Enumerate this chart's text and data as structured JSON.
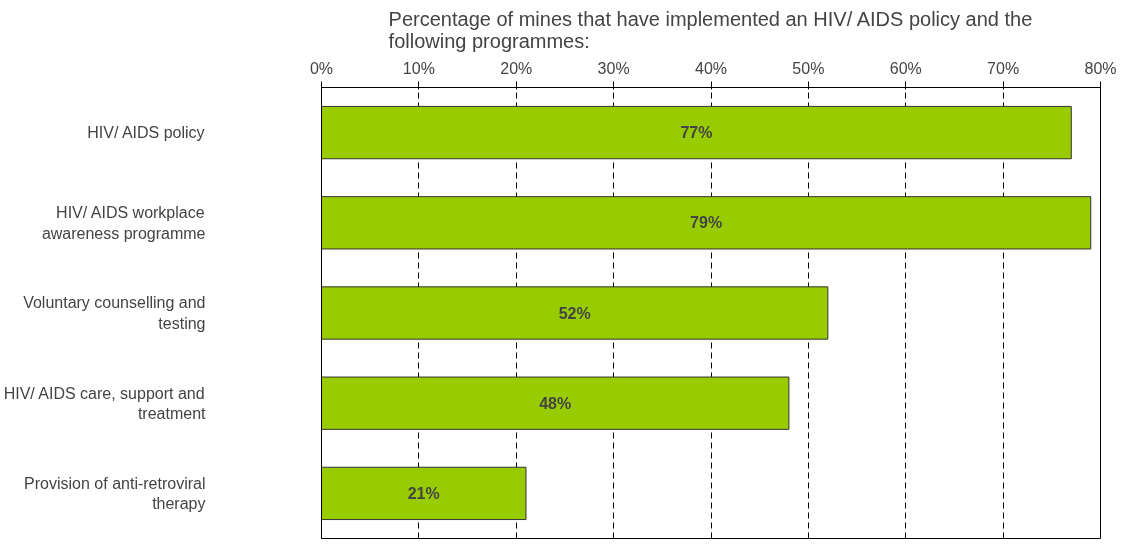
{
  "chart_data": {
    "type": "bar",
    "orientation": "horizontal",
    "title": "Percentage of mines that have implemented an HIV/ AIDS policy and the following programmes:",
    "categories": [
      "HIV/ AIDS policy",
      "HIV/ AIDS workplace awareness programme",
      "Voluntary counselling and testing",
      "HIV/ AIDS care, support and treatment",
      "Provision of anti-retroviral therapy"
    ],
    "values": [
      77,
      79,
      52,
      48,
      21
    ],
    "color": "#99cc00",
    "value_labels": [
      "77%",
      "79%",
      "52%",
      "48%",
      "21%"
    ],
    "xlim": [
      0,
      80
    ],
    "xticks": [
      {
        "value": 0,
        "label": "0%"
      },
      {
        "value": 10,
        "label": "10%"
      },
      {
        "value": 20,
        "label": "20%"
      },
      {
        "value": 30,
        "label": "30%"
      },
      {
        "value": 40,
        "label": "40%"
      },
      {
        "value": 50,
        "label": "50%"
      },
      {
        "value": 60,
        "label": "60%"
      },
      {
        "value": 70,
        "label": "70%"
      },
      {
        "value": 80,
        "label": "80%"
      }
    ],
    "grid": "x"
  }
}
